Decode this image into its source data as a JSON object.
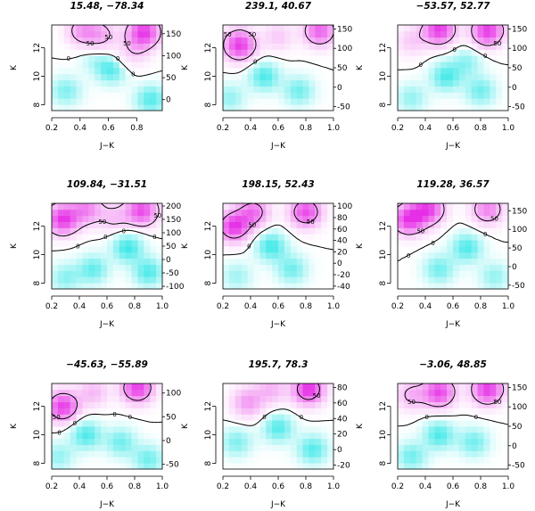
{
  "figure": {
    "colors": {
      "low": "#2ee6e6",
      "mid": "#ffffff",
      "high": "#e62ee6",
      "contour": "#000000"
    },
    "xaxis": {
      "label": "J−K",
      "ticks": [
        0.2,
        0.4,
        0.6,
        0.8,
        1.0
      ],
      "tick_labels": [
        "0.2",
        "0.4",
        "0.6",
        "0.8",
        "1.0"
      ]
    },
    "yaxis": {
      "label": "K",
      "ticks": [
        8,
        10,
        12
      ],
      "tick_labels": [
        "8",
        "10",
        "12"
      ]
    }
  },
  "chart_data": [
    {
      "type": "heatmap",
      "title": "15.48, −78.34",
      "xlim": [
        0.2,
        0.98
      ],
      "ylim": [
        7.6,
        13.6
      ],
      "colorbar_ticks": [
        0,
        50,
        100,
        150
      ],
      "colorbar_range": [
        -25,
        170
      ],
      "contour_labels": [
        "50",
        "50",
        "50",
        "0",
        "0",
        "0",
        "0"
      ],
      "hot": [
        [
          0.42,
          13.2,
          80
        ],
        [
          0.85,
          13.1,
          160
        ],
        [
          0.55,
          12.9,
          60
        ],
        [
          0.78,
          11.8,
          40
        ]
      ],
      "cold": [
        [
          0.62,
          10.5,
          -20
        ],
        [
          0.3,
          9.0,
          -15
        ],
        [
          0.9,
          8.4,
          -20
        ],
        [
          0.5,
          11.5,
          -10
        ]
      ]
    },
    {
      "type": "heatmap",
      "title": "239.1, 40.67",
      "xlim": [
        0.2,
        1.0
      ],
      "ylim": [
        7.6,
        13.6
      ],
      "colorbar_ticks": [
        -50,
        0,
        50,
        100,
        150
      ],
      "colorbar_range": [
        -60,
        160
      ],
      "contour_labels": [
        "0",
        "0",
        "0",
        "50",
        "50"
      ],
      "hot": [
        [
          0.32,
          12.2,
          150
        ],
        [
          0.9,
          13.2,
          120
        ],
        [
          0.6,
          12.8,
          40
        ]
      ],
      "cold": [
        [
          0.5,
          10.0,
          -50
        ],
        [
          0.75,
          9.0,
          -40
        ],
        [
          0.25,
          8.5,
          -30
        ]
      ]
    },
    {
      "type": "heatmap",
      "title": "−53.57, 52.77",
      "xlim": [
        0.2,
        1.0
      ],
      "ylim": [
        7.6,
        13.6
      ],
      "colorbar_ticks": [
        -50,
        0,
        50,
        100,
        150
      ],
      "colorbar_range": [
        -60,
        160
      ],
      "contour_labels": [
        "50",
        "50",
        "50",
        "0",
        "0",
        "0",
        "0",
        "0",
        "0"
      ],
      "hot": [
        [
          0.5,
          13.3,
          150
        ],
        [
          0.85,
          13.2,
          150
        ],
        [
          0.3,
          12.5,
          40
        ]
      ],
      "cold": [
        [
          0.55,
          10.0,
          -50
        ],
        [
          0.8,
          9.0,
          -40
        ],
        [
          0.3,
          8.5,
          -30
        ],
        [
          0.7,
          11.0,
          -30
        ]
      ]
    },
    {
      "type": "heatmap",
      "title": "109.84, −31.51",
      "xlim": [
        0.2,
        1.0
      ],
      "ylim": [
        7.6,
        13.6
      ],
      "colorbar_ticks": [
        -100,
        -50,
        0,
        50,
        100,
        150,
        200
      ],
      "colorbar_range": [
        -110,
        210
      ],
      "contour_labels": [
        "50",
        "50",
        "0",
        "0",
        "0",
        "0",
        "0"
      ],
      "hot": [
        [
          0.28,
          12.5,
          200
        ],
        [
          0.45,
          13.2,
          120
        ],
        [
          0.85,
          13.1,
          180
        ],
        [
          0.65,
          12.6,
          60
        ]
      ],
      "cold": [
        [
          0.75,
          10.5,
          -100
        ],
        [
          0.5,
          9.0,
          -80
        ],
        [
          0.3,
          8.4,
          -60
        ],
        [
          0.9,
          8.8,
          -90
        ]
      ]
    },
    {
      "type": "heatmap",
      "title": "198.15, 52.43",
      "xlim": [
        0.2,
        1.0
      ],
      "ylim": [
        7.6,
        13.6
      ],
      "colorbar_ticks": [
        -40,
        -20,
        0,
        20,
        40,
        60,
        80,
        100
      ],
      "colorbar_range": [
        -45,
        105
      ],
      "contour_labels": [
        "50",
        "50",
        "0",
        "0",
        "0",
        "0"
      ],
      "hot": [
        [
          0.28,
          12.0,
          100
        ],
        [
          0.42,
          13.0,
          70
        ],
        [
          0.8,
          13.0,
          90
        ]
      ],
      "cold": [
        [
          0.55,
          10.6,
          -40
        ],
        [
          0.7,
          9.0,
          -30
        ],
        [
          0.3,
          8.5,
          -20
        ]
      ]
    },
    {
      "type": "heatmap",
      "title": "119.28, 36.57",
      "xlim": [
        0.2,
        1.0
      ],
      "ylim": [
        7.6,
        13.6
      ],
      "colorbar_ticks": [
        -50,
        0,
        50,
        100,
        150
      ],
      "colorbar_range": [
        -60,
        170
      ],
      "contour_labels": [
        "50",
        "50",
        "0",
        "0",
        "0",
        "0",
        "0"
      ],
      "hot": [
        [
          0.28,
          12.5,
          160
        ],
        [
          0.42,
          13.2,
          150
        ],
        [
          0.85,
          13.2,
          100
        ]
      ],
      "cold": [
        [
          0.7,
          10.5,
          -50
        ],
        [
          0.5,
          9.0,
          -40
        ],
        [
          0.9,
          8.5,
          -30
        ]
      ]
    },
    {
      "type": "heatmap",
      "title": "−45.63, −55.89",
      "xlim": [
        0.2,
        1.0
      ],
      "ylim": [
        7.6,
        13.6
      ],
      "colorbar_ticks": [
        -50,
        0,
        50,
        100
      ],
      "colorbar_range": [
        -60,
        120
      ],
      "contour_labels": [
        "50",
        "0",
        "0",
        "0",
        "0",
        "0"
      ],
      "hot": [
        [
          0.28,
          12.0,
          110
        ],
        [
          0.82,
          13.3,
          110
        ],
        [
          0.5,
          13.0,
          40
        ]
      ],
      "cold": [
        [
          0.45,
          10.0,
          -50
        ],
        [
          0.7,
          9.5,
          -40
        ],
        [
          0.25,
          8.5,
          -30
        ],
        [
          0.9,
          8.3,
          -40
        ]
      ]
    },
    {
      "type": "heatmap",
      "title": "195.7, 78.3",
      "xlim": [
        0.2,
        1.0
      ],
      "ylim": [
        7.6,
        13.6
      ],
      "colorbar_ticks": [
        -20,
        0,
        20,
        40,
        60,
        80
      ],
      "colorbar_range": [
        -25,
        85
      ],
      "contour_labels": [
        "50",
        "0",
        "0",
        "0"
      ],
      "hot": [
        [
          0.82,
          13.2,
          85
        ],
        [
          0.38,
          12.3,
          40
        ],
        [
          0.55,
          13.2,
          30
        ]
      ],
      "cold": [
        [
          0.6,
          10.5,
          -20
        ],
        [
          0.3,
          9.5,
          -15
        ],
        [
          0.85,
          9.0,
          -20
        ]
      ]
    },
    {
      "type": "heatmap",
      "title": "−3.06, 48.85",
      "xlim": [
        0.2,
        1.0
      ],
      "ylim": [
        7.6,
        13.6
      ],
      "colorbar_ticks": [
        -50,
        0,
        50,
        100,
        150
      ],
      "colorbar_range": [
        -60,
        160
      ],
      "contour_labels": [
        "50",
        "50",
        "0",
        "0",
        "0",
        "0",
        "0"
      ],
      "hot": [
        [
          0.5,
          13.0,
          140
        ],
        [
          0.85,
          13.2,
          150
        ],
        [
          0.3,
          12.8,
          60
        ]
      ],
      "cold": [
        [
          0.5,
          10.0,
          -50
        ],
        [
          0.75,
          9.5,
          -40
        ],
        [
          0.3,
          8.5,
          -40
        ]
      ]
    }
  ]
}
